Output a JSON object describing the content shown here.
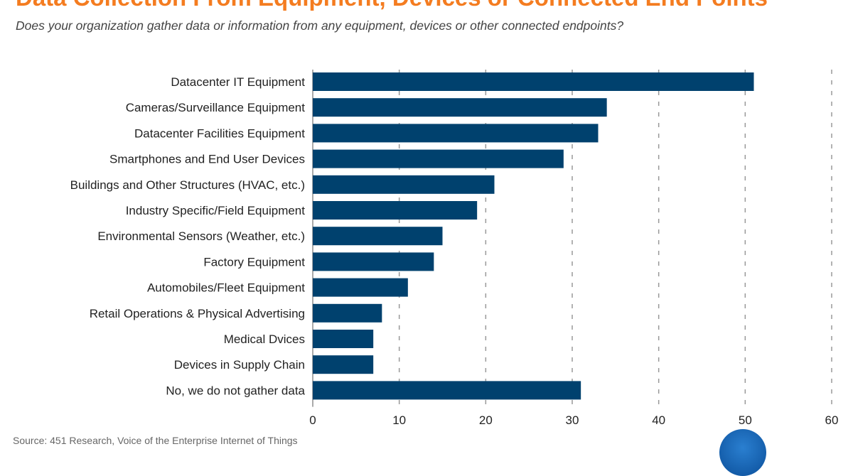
{
  "title": "Data Collection From Equipment, Devices or Connected End Points",
  "subtitle": "Does your organization gather data or information from any equipment, devices or other connected endpoints?",
  "source": "Source: 451 Research, Voice of the Enterprise Internet of Things",
  "chart_data": {
    "type": "bar",
    "orientation": "horizontal",
    "title": "Data Collection From Equipment, Devices or Connected End Points",
    "subtitle": "Does your organization gather data or information from any equipment, devices or other connected endpoints?",
    "categories": [
      "Datacenter IT Equipment",
      "Cameras/Surveillance Equipment",
      "Datacenter Facilities Equipment",
      "Smartphones and End User Devices",
      "Buildings and Other Structures (HVAC, etc.)",
      "Industry Specific/Field Equipment",
      "Environmental Sensors (Weather, etc.)",
      "Factory Equipment",
      "Automobiles/Fleet Equipment",
      "Retail Operations & Physical Advertising",
      "Medical Dvices",
      "Devices in Supply Chain",
      "No, we do not gather data"
    ],
    "values": [
      51,
      34,
      33,
      29,
      21,
      19,
      15,
      14,
      11,
      8,
      7,
      7,
      31
    ],
    "xlim": [
      0,
      60
    ],
    "xticks": [
      "0",
      "10",
      "20",
      "30",
      "40",
      "50",
      "60"
    ],
    "grid": "vertical dashed",
    "bar_color": "#00416e",
    "title_color": "#f47c20"
  }
}
